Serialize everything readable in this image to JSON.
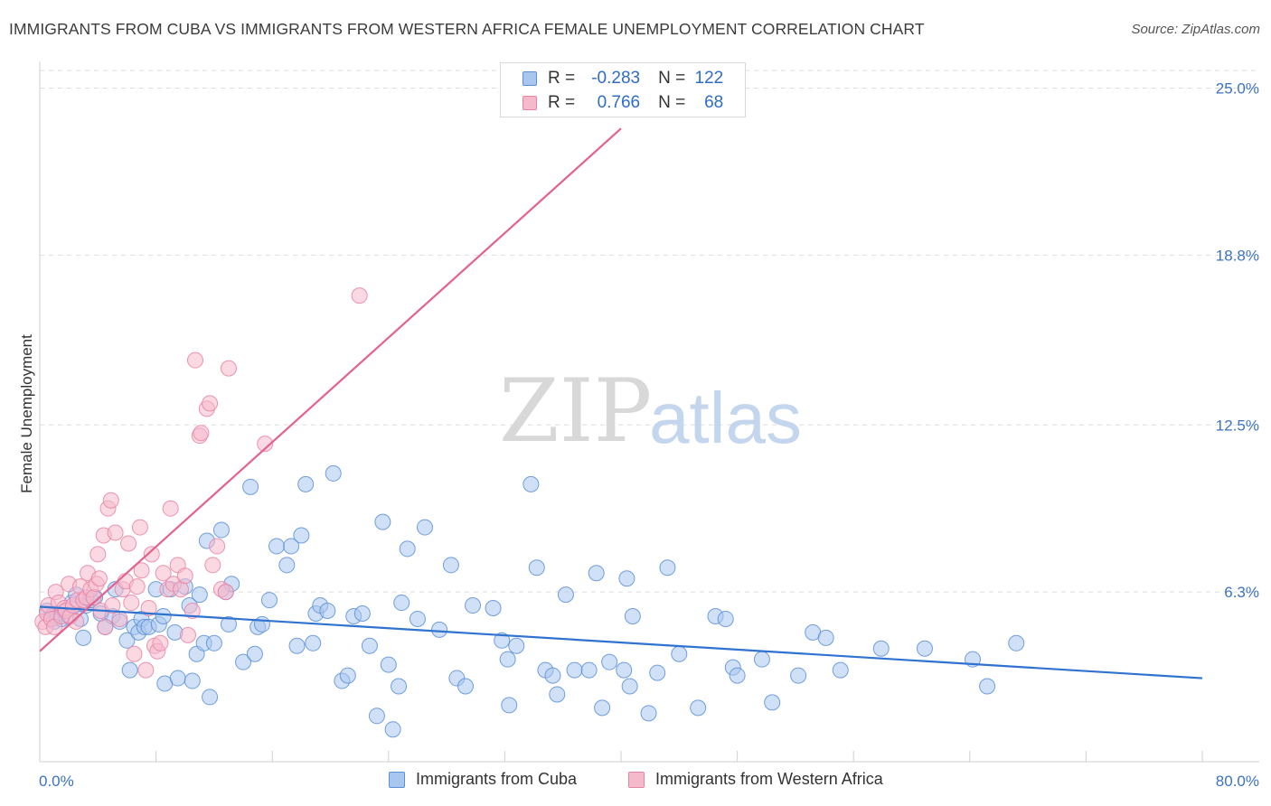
{
  "title": "IMMIGRANTS FROM CUBA VS IMMIGRANTS FROM WESTERN AFRICA FEMALE UNEMPLOYMENT CORRELATION CHART",
  "source": "Source: ZipAtlas.com",
  "watermark": {
    "zip": "ZIP",
    "atlas": "atlas"
  },
  "legend": {
    "r_label": "R =",
    "n_label": "N =",
    "rows": [
      {
        "r": "-0.283",
        "n": "122"
      },
      {
        "r": "0.766",
        "n": "68"
      }
    ]
  },
  "colors": {
    "cuba_fill": "#a9c6ee",
    "cuba_stroke": "#5b8fd8",
    "cuba_line": "#2f72d0",
    "wafrica_fill": "#f5b9cc",
    "wafrica_stroke": "#e883a6",
    "wafrica_line": "#e4628f",
    "grid": "#dedede",
    "axis_text": "#3b73c5"
  },
  "chart_data": {
    "type": "scatter",
    "xlabel": "",
    "ylabel": "Female Unemployment",
    "xlim": [
      0,
      80
    ],
    "ylim": [
      0,
      25.6
    ],
    "x_tick_labels": [
      "0.0%",
      "80.0%"
    ],
    "y_ticks": [
      6.3,
      12.5,
      18.8,
      25.0
    ],
    "y_tick_labels": [
      "6.3%",
      "12.5%",
      "18.8%",
      "25.0%"
    ],
    "legend_position": "bottom",
    "series": [
      {
        "name": "Immigrants from Cuba",
        "r": -0.283,
        "n": 122,
        "trend": {
          "x": [
            0,
            80
          ],
          "y": [
            5.75,
            3.1
          ]
        },
        "points": [
          [
            0.5,
            5.6
          ],
          [
            0.8,
            5.4
          ],
          [
            1.0,
            5.2
          ],
          [
            1.2,
            5.5
          ],
          [
            1.5,
            5.3
          ],
          [
            1.8,
            5.6
          ],
          [
            2.0,
            5.4
          ],
          [
            2.2,
            5.9
          ],
          [
            2.5,
            6.2
          ],
          [
            2.8,
            5.3
          ],
          [
            3.0,
            4.6
          ],
          [
            3.2,
            5.8
          ],
          [
            3.5,
            6.0
          ],
          [
            3.8,
            6.1
          ],
          [
            4.2,
            5.5
          ],
          [
            4.5,
            5.0
          ],
          [
            5.0,
            5.4
          ],
          [
            5.2,
            6.4
          ],
          [
            5.5,
            5.2
          ],
          [
            6.0,
            4.5
          ],
          [
            6.2,
            3.4
          ],
          [
            6.5,
            5.0
          ],
          [
            6.8,
            4.8
          ],
          [
            7.0,
            5.3
          ],
          [
            7.2,
            5.0
          ],
          [
            7.5,
            5.0
          ],
          [
            8.0,
            6.4
          ],
          [
            8.2,
            5.1
          ],
          [
            8.5,
            5.4
          ],
          [
            8.6,
            2.9
          ],
          [
            9.0,
            6.4
          ],
          [
            9.3,
            4.8
          ],
          [
            9.5,
            3.1
          ],
          [
            10.0,
            6.5
          ],
          [
            10.3,
            5.8
          ],
          [
            10.5,
            3.0
          ],
          [
            10.8,
            4.0
          ],
          [
            11.0,
            6.2
          ],
          [
            11.3,
            4.4
          ],
          [
            11.5,
            8.2
          ],
          [
            11.7,
            2.4
          ],
          [
            12.0,
            4.4
          ],
          [
            12.5,
            8.6
          ],
          [
            12.8,
            6.3
          ],
          [
            13.0,
            5.1
          ],
          [
            13.2,
            6.6
          ],
          [
            14.0,
            3.7
          ],
          [
            14.5,
            10.2
          ],
          [
            14.8,
            4.0
          ],
          [
            15.0,
            5.0
          ],
          [
            15.3,
            5.1
          ],
          [
            15.8,
            6.0
          ],
          [
            16.3,
            8.0
          ],
          [
            17.0,
            7.3
          ],
          [
            17.3,
            8.0
          ],
          [
            17.7,
            4.3
          ],
          [
            18.0,
            8.4
          ],
          [
            18.3,
            10.3
          ],
          [
            18.8,
            4.4
          ],
          [
            19.0,
            5.5
          ],
          [
            19.3,
            5.8
          ],
          [
            19.8,
            5.6
          ],
          [
            20.2,
            10.7
          ],
          [
            20.8,
            3.0
          ],
          [
            21.2,
            3.2
          ],
          [
            21.6,
            5.4
          ],
          [
            22.2,
            5.5
          ],
          [
            22.7,
            4.3
          ],
          [
            23.2,
            1.7
          ],
          [
            23.6,
            8.9
          ],
          [
            24.0,
            3.6
          ],
          [
            24.3,
            1.2
          ],
          [
            24.7,
            2.8
          ],
          [
            24.9,
            5.9
          ],
          [
            25.3,
            7.9
          ],
          [
            26.0,
            5.3
          ],
          [
            26.5,
            8.7
          ],
          [
            27.5,
            4.9
          ],
          [
            28.3,
            7.3
          ],
          [
            28.7,
            3.1
          ],
          [
            29.3,
            2.8
          ],
          [
            29.8,
            5.8
          ],
          [
            31.2,
            5.7
          ],
          [
            31.8,
            4.5
          ],
          [
            32.2,
            3.8
          ],
          [
            32.3,
            2.1
          ],
          [
            32.8,
            4.3
          ],
          [
            33.8,
            10.3
          ],
          [
            34.2,
            7.2
          ],
          [
            34.8,
            3.4
          ],
          [
            35.3,
            3.2
          ],
          [
            35.6,
            2.5
          ],
          [
            36.2,
            6.2
          ],
          [
            36.8,
            3.4
          ],
          [
            37.8,
            3.4
          ],
          [
            38.3,
            7.0
          ],
          [
            38.7,
            2.0
          ],
          [
            39.2,
            3.7
          ],
          [
            40.2,
            3.4
          ],
          [
            40.4,
            6.8
          ],
          [
            40.6,
            2.8
          ],
          [
            40.8,
            5.4
          ],
          [
            41.9,
            1.8
          ],
          [
            42.5,
            3.3
          ],
          [
            43.2,
            7.2
          ],
          [
            44.0,
            4.0
          ],
          [
            45.3,
            2.0
          ],
          [
            46.5,
            5.4
          ],
          [
            47.2,
            5.3
          ],
          [
            47.7,
            3.5
          ],
          [
            48.0,
            3.2
          ],
          [
            49.7,
            3.8
          ],
          [
            50.4,
            2.2
          ],
          [
            52.2,
            3.2
          ],
          [
            53.2,
            4.8
          ],
          [
            54.1,
            4.6
          ],
          [
            55.1,
            3.4
          ],
          [
            57.9,
            4.2
          ],
          [
            60.9,
            4.2
          ],
          [
            64.2,
            3.8
          ],
          [
            65.2,
            2.8
          ],
          [
            67.2,
            4.4
          ]
        ]
      },
      {
        "name": "Immigrants from Western Africa",
        "r": 0.766,
        "n": 68,
        "trend": {
          "x": [
            0,
            40
          ],
          "y": [
            4.1,
            23.5
          ]
        },
        "points": [
          [
            0.2,
            5.2
          ],
          [
            0.4,
            5.0
          ],
          [
            0.5,
            5.5
          ],
          [
            0.6,
            5.8
          ],
          [
            0.8,
            5.3
          ],
          [
            1.0,
            5.0
          ],
          [
            1.1,
            6.3
          ],
          [
            1.3,
            5.9
          ],
          [
            1.5,
            5.4
          ],
          [
            1.7,
            5.7
          ],
          [
            1.8,
            5.6
          ],
          [
            2.0,
            6.6
          ],
          [
            2.1,
            5.4
          ],
          [
            2.3,
            5.8
          ],
          [
            2.5,
            5.2
          ],
          [
            2.6,
            6.0
          ],
          [
            2.8,
            6.5
          ],
          [
            3.0,
            6.0
          ],
          [
            3.2,
            6.1
          ],
          [
            3.3,
            7.0
          ],
          [
            3.5,
            6.4
          ],
          [
            3.7,
            6.1
          ],
          [
            3.9,
            6.6
          ],
          [
            4.0,
            7.7
          ],
          [
            4.1,
            6.8
          ],
          [
            4.2,
            5.6
          ],
          [
            4.4,
            8.4
          ],
          [
            4.5,
            5.0
          ],
          [
            4.7,
            9.4
          ],
          [
            4.9,
            9.7
          ],
          [
            5.0,
            5.8
          ],
          [
            5.2,
            8.5
          ],
          [
            5.5,
            5.3
          ],
          [
            5.7,
            6.4
          ],
          [
            5.9,
            6.7
          ],
          [
            6.1,
            8.1
          ],
          [
            6.3,
            5.9
          ],
          [
            6.5,
            4.0
          ],
          [
            6.7,
            6.5
          ],
          [
            6.9,
            8.7
          ],
          [
            7.0,
            7.1
          ],
          [
            7.3,
            3.4
          ],
          [
            7.5,
            5.7
          ],
          [
            7.7,
            7.7
          ],
          [
            7.9,
            4.3
          ],
          [
            8.1,
            4.1
          ],
          [
            8.3,
            4.4
          ],
          [
            8.5,
            7.0
          ],
          [
            8.8,
            6.4
          ],
          [
            9.0,
            9.4
          ],
          [
            9.2,
            6.6
          ],
          [
            9.5,
            7.3
          ],
          [
            9.7,
            6.4
          ],
          [
            10.0,
            6.9
          ],
          [
            10.2,
            4.7
          ],
          [
            10.5,
            5.6
          ],
          [
            10.7,
            14.9
          ],
          [
            11.0,
            12.1
          ],
          [
            11.1,
            12.2
          ],
          [
            11.5,
            13.1
          ],
          [
            11.7,
            13.3
          ],
          [
            11.9,
            7.3
          ],
          [
            12.2,
            8.0
          ],
          [
            12.5,
            6.4
          ],
          [
            13.0,
            14.6
          ],
          [
            15.5,
            11.8
          ],
          [
            22.0,
            17.3
          ],
          [
            12.8,
            6.3
          ]
        ]
      }
    ]
  }
}
